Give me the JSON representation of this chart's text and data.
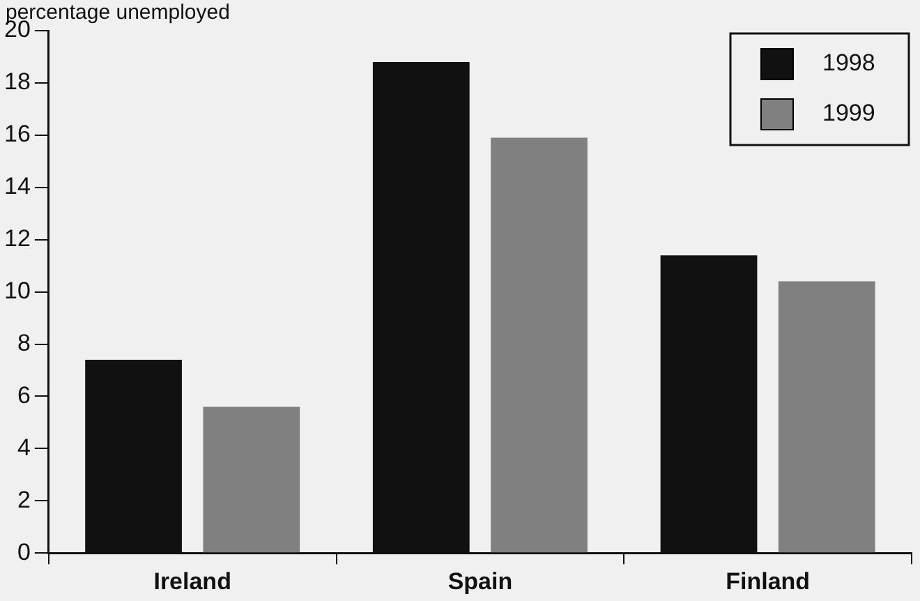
{
  "chart_data": {
    "type": "bar",
    "ylabel": "percentage unemployed",
    "categories": [
      "Ireland",
      "Spain",
      "Finland"
    ],
    "series": [
      {
        "name": "1998",
        "color": "#111111",
        "values": [
          7.4,
          18.8,
          11.4
        ]
      },
      {
        "name": "1999",
        "color": "#808080",
        "values": [
          5.6,
          15.9,
          10.4
        ]
      }
    ],
    "ylim": [
      0,
      20
    ],
    "yticks": [
      0,
      2,
      4,
      6,
      8,
      10,
      12,
      14,
      16,
      18,
      20
    ],
    "grid": false,
    "legend": "top right"
  }
}
